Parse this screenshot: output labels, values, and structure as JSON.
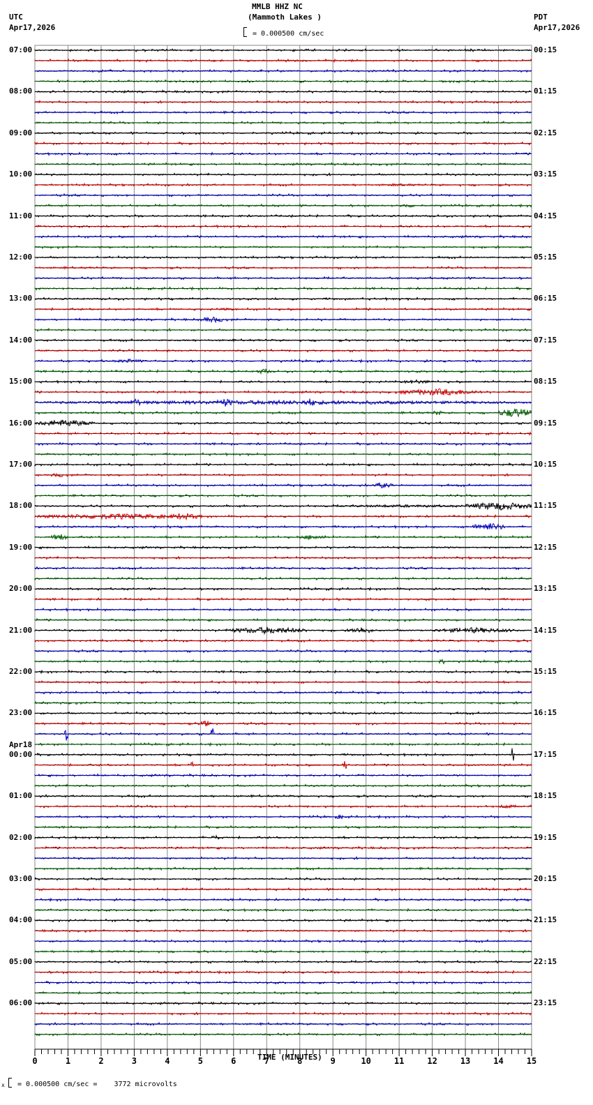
{
  "header": {
    "station": "MMLB HHZ NC",
    "location": "(Mammoth Lakes )",
    "scale": "= 0.000500 cm/sec",
    "left_tz": "UTC",
    "left_date": "Apr17,2026",
    "right_tz": "PDT",
    "right_date": "Apr17,2026"
  },
  "footer": {
    "scale_note": "= 0.000500 cm/sec =    3772 microvolts",
    "scale_prefix": "x"
  },
  "colors": {
    "trace": [
      "#000000",
      "#dd0000",
      "#0000cc",
      "#006600"
    ],
    "grid": "#888888",
    "baseline": "#000000"
  },
  "chart_data": {
    "type": "line",
    "title": "MMLB HHZ NC (Mammoth Lakes ) helicorder",
    "xlabel": "TIME (MINUTES)",
    "ylabel": "",
    "xlim": [
      0,
      15
    ],
    "x_ticks": [
      "0",
      "1",
      "2",
      "3",
      "4",
      "5",
      "6",
      "7",
      "8",
      "9",
      "10",
      "11",
      "12",
      "13",
      "14",
      "15"
    ],
    "rows_per_hour": 4,
    "row_minutes": 15,
    "num_rows": 96,
    "left_labels": [
      {
        "row": 0,
        "text": "07:00"
      },
      {
        "row": 4,
        "text": "08:00"
      },
      {
        "row": 8,
        "text": "09:00"
      },
      {
        "row": 12,
        "text": "10:00"
      },
      {
        "row": 16,
        "text": "11:00"
      },
      {
        "row": 20,
        "text": "12:00"
      },
      {
        "row": 24,
        "text": "13:00"
      },
      {
        "row": 28,
        "text": "14:00"
      },
      {
        "row": 32,
        "text": "15:00"
      },
      {
        "row": 36,
        "text": "16:00"
      },
      {
        "row": 40,
        "text": "17:00"
      },
      {
        "row": 44,
        "text": "18:00"
      },
      {
        "row": 48,
        "text": "19:00"
      },
      {
        "row": 52,
        "text": "20:00"
      },
      {
        "row": 56,
        "text": "21:00"
      },
      {
        "row": 60,
        "text": "22:00"
      },
      {
        "row": 64,
        "text": "23:00"
      },
      {
        "row": 68,
        "text": "00:00",
        "date": "Apr18"
      },
      {
        "row": 72,
        "text": "01:00"
      },
      {
        "row": 76,
        "text": "02:00"
      },
      {
        "row": 80,
        "text": "03:00"
      },
      {
        "row": 84,
        "text": "04:00"
      },
      {
        "row": 88,
        "text": "05:00"
      },
      {
        "row": 92,
        "text": "06:00"
      }
    ],
    "right_labels": [
      {
        "row": 0,
        "text": "00:15"
      },
      {
        "row": 4,
        "text": "01:15"
      },
      {
        "row": 8,
        "text": "02:15"
      },
      {
        "row": 12,
        "text": "03:15"
      },
      {
        "row": 16,
        "text": "04:15"
      },
      {
        "row": 20,
        "text": "05:15"
      },
      {
        "row": 24,
        "text": "06:15"
      },
      {
        "row": 28,
        "text": "07:15"
      },
      {
        "row": 32,
        "text": "08:15"
      },
      {
        "row": 36,
        "text": "09:15"
      },
      {
        "row": 40,
        "text": "10:15"
      },
      {
        "row": 44,
        "text": "11:15"
      },
      {
        "row": 48,
        "text": "12:15"
      },
      {
        "row": 52,
        "text": "13:15"
      },
      {
        "row": 56,
        "text": "14:15"
      },
      {
        "row": 60,
        "text": "15:15"
      },
      {
        "row": 64,
        "text": "16:15"
      },
      {
        "row": 68,
        "text": "17:15"
      },
      {
        "row": 72,
        "text": "18:15"
      },
      {
        "row": 76,
        "text": "19:15"
      },
      {
        "row": 80,
        "text": "20:15"
      },
      {
        "row": 84,
        "text": "21:15"
      },
      {
        "row": 88,
        "text": "22:15"
      },
      {
        "row": 92,
        "text": "23:15"
      }
    ],
    "events": [
      {
        "row": 13,
        "start": 10.5,
        "end": 11.5,
        "amp": 2
      },
      {
        "row": 15,
        "start": 11.0,
        "end": 11.5,
        "amp": 3
      },
      {
        "row": 25,
        "start": 5.5,
        "end": 6.2,
        "amp": 2
      },
      {
        "row": 26,
        "start": 5.0,
        "end": 5.8,
        "amp": 4
      },
      {
        "row": 30,
        "start": 2.5,
        "end": 3.2,
        "amp": 3
      },
      {
        "row": 31,
        "start": 6.7,
        "end": 7.1,
        "amp": 4
      },
      {
        "row": 32,
        "start": 11.0,
        "end": 12.0,
        "amp": 3
      },
      {
        "row": 33,
        "start": 11.0,
        "end": 13.5,
        "amp": 5
      },
      {
        "row": 34,
        "start": 0.0,
        "end": 15.0,
        "amp": 3
      },
      {
        "row": 34,
        "start": 2.9,
        "end": 3.2,
        "amp": 6
      },
      {
        "row": 34,
        "start": 5.5,
        "end": 6.0,
        "amp": 6
      },
      {
        "row": 34,
        "start": 8.1,
        "end": 8.5,
        "amp": 6
      },
      {
        "row": 35,
        "start": 12.0,
        "end": 12.3,
        "amp": 4
      },
      {
        "row": 35,
        "start": 14.0,
        "end": 15.0,
        "amp": 7
      },
      {
        "row": 36,
        "start": 0.0,
        "end": 1.8,
        "amp": 5
      },
      {
        "row": 41,
        "start": 0.5,
        "end": 1.0,
        "amp": 3
      },
      {
        "row": 42,
        "start": 10.2,
        "end": 10.8,
        "amp": 4
      },
      {
        "row": 44,
        "start": 13.0,
        "end": 15.0,
        "amp": 6
      },
      {
        "row": 44,
        "start": 9.0,
        "end": 13.0,
        "amp": 2
      },
      {
        "row": 45,
        "start": 0.0,
        "end": 5.0,
        "amp": 4
      },
      {
        "row": 45,
        "start": 4.0,
        "end": 5.0,
        "amp": 5
      },
      {
        "row": 46,
        "start": 13.2,
        "end": 14.2,
        "amp": 6
      },
      {
        "row": 47,
        "start": 0.5,
        "end": 1.0,
        "amp": 5
      },
      {
        "row": 47,
        "start": 8.0,
        "end": 8.8,
        "amp": 4
      },
      {
        "row": 56,
        "start": 5.8,
        "end": 8.3,
        "amp": 5
      },
      {
        "row": 56,
        "start": 9.5,
        "end": 10.2,
        "amp": 5
      },
      {
        "row": 56,
        "start": 12.0,
        "end": 14.5,
        "amp": 4
      },
      {
        "row": 59,
        "start": 12.2,
        "end": 12.4,
        "amp": 4
      },
      {
        "row": 66,
        "start": 0.9,
        "end": 1.0,
        "amp": 10
      },
      {
        "row": 66,
        "start": 5.3,
        "end": 5.4,
        "amp": 10
      },
      {
        "row": 65,
        "start": 5.0,
        "end": 5.3,
        "amp": 5
      },
      {
        "row": 68,
        "start": 14.4,
        "end": 14.5,
        "amp": 16
      },
      {
        "row": 69,
        "start": 9.3,
        "end": 9.4,
        "amp": 8
      },
      {
        "row": 69,
        "start": 4.7,
        "end": 4.8,
        "amp": 5
      },
      {
        "row": 73,
        "start": 14.0,
        "end": 14.5,
        "amp": 3
      },
      {
        "row": 74,
        "start": 9.0,
        "end": 9.4,
        "amp": 3
      },
      {
        "row": 76,
        "start": 5.2,
        "end": 5.7,
        "amp": 3
      }
    ]
  }
}
